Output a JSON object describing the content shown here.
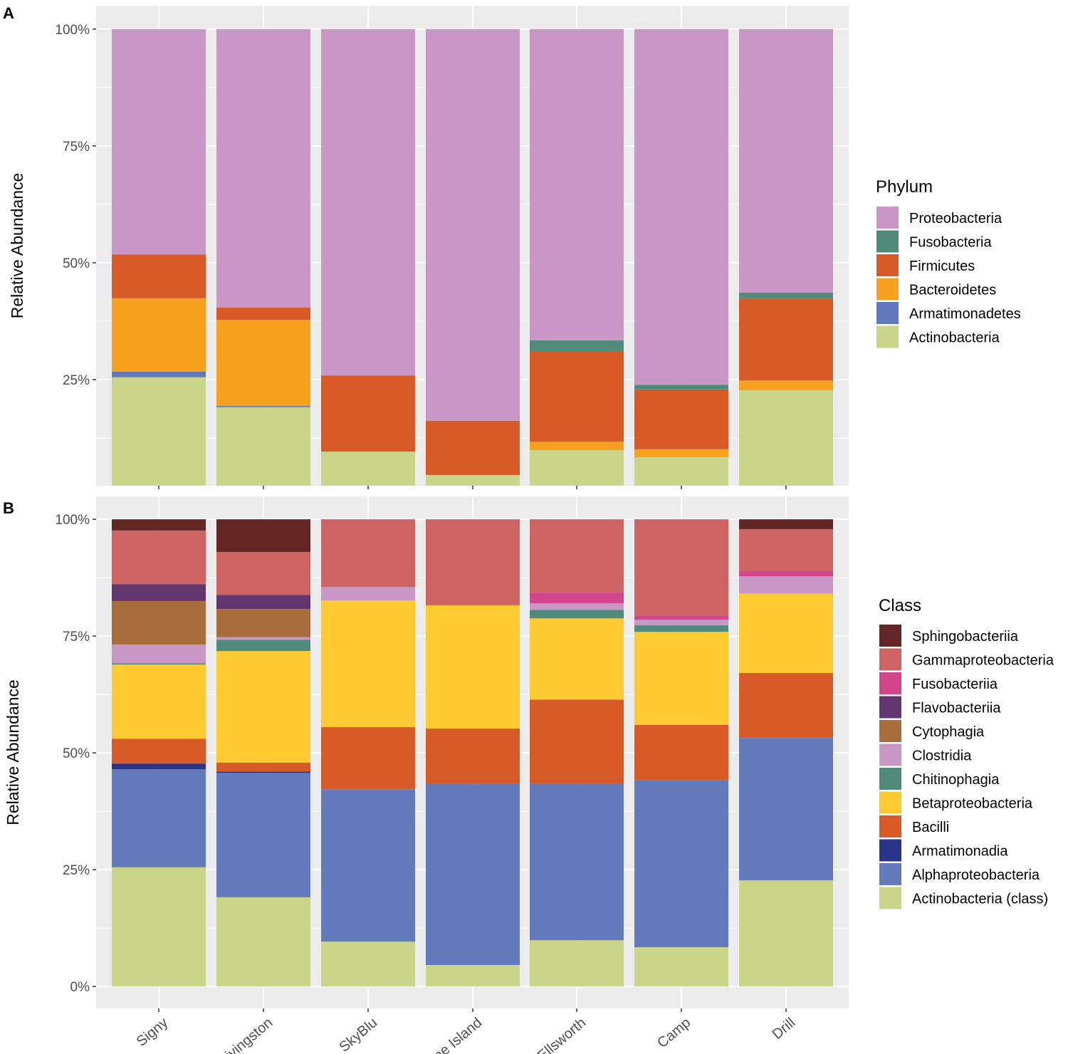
{
  "chart_data": [
    {
      "type": "bar",
      "stacked": true,
      "panel_label": "A",
      "ylabel": "Relative Abundance",
      "ylim": [
        2.3,
        105
      ],
      "yticks": [
        {
          "v": 25,
          "label": "25%"
        },
        {
          "v": 50,
          "label": "50%"
        },
        {
          "v": 75,
          "label": "75%"
        },
        {
          "v": 100,
          "label": "100%"
        }
      ],
      "categories": [
        "Signy",
        "Livingston",
        "SkyBlu",
        "Pine Island",
        "Ellsworth",
        "Camp",
        "Drill"
      ],
      "legend_title": "Phylum",
      "legend_position": "right",
      "series": [
        {
          "name": "Actinobacteria",
          "color": "#CBD589",
          "values": [
            25.5,
            19.1,
            9.6,
            4.6,
            9.9,
            8.4,
            22.7
          ]
        },
        {
          "name": "Armatimonadetes",
          "color": "#6079BC",
          "values": [
            1.2,
            0.3,
            0,
            0,
            0,
            0,
            0
          ]
        },
        {
          "name": "Bacteroidetes",
          "color": "#F8A11E",
          "values": [
            15.7,
            18.4,
            0,
            0,
            1.8,
            1.7,
            2.1
          ]
        },
        {
          "name": "Firmicutes",
          "color": "#D85A27",
          "values": [
            9.4,
            2.6,
            16.3,
            11.6,
            19.4,
            12.8,
            17.6
          ]
        },
        {
          "name": "Fusobacteria",
          "color": "#4F8A7B",
          "values": [
            0,
            0,
            0,
            0,
            2.3,
            1.0,
            1.2
          ]
        },
        {
          "name": "Proteobacteria",
          "color": "#C997C6",
          "values": [
            48.2,
            59.6,
            74.1,
            83.8,
            66.6,
            76.1,
            56.4
          ]
        }
      ]
    },
    {
      "type": "bar",
      "stacked": true,
      "panel_label": "B",
      "ylabel": "Relative Abundance",
      "ylim": [
        -4.7,
        104.9
      ],
      "yticks": [
        {
          "v": 0,
          "label": "0%"
        },
        {
          "v": 25,
          "label": "25%"
        },
        {
          "v": 50,
          "label": "50%"
        },
        {
          "v": 75,
          "label": "75%"
        },
        {
          "v": 100,
          "label": "100%"
        }
      ],
      "categories": [
        "Signy",
        "Livingston",
        "SkyBlu",
        "Pine Island",
        "Ellsworth",
        "Camp",
        "Drill"
      ],
      "legend_title": "Class",
      "legend_position": "right",
      "series": [
        {
          "name": "Actinobacteria (class)",
          "color": "#CBD589",
          "values": [
            25.5,
            19.1,
            9.6,
            4.6,
            9.9,
            8.4,
            22.7
          ]
        },
        {
          "name": "Alphaproteobacteria",
          "color": "#637BBD",
          "values": [
            21.0,
            26.6,
            32.6,
            38.8,
            33.5,
            35.7,
            30.5
          ]
        },
        {
          "name": "Armatimonadia",
          "color": "#2B3489",
          "values": [
            1.2,
            0.3,
            0,
            0,
            0,
            0,
            0
          ]
        },
        {
          "name": "Bacilli",
          "color": "#D85A27",
          "values": [
            5.3,
            1.9,
            13.3,
            11.8,
            18.0,
            11.9,
            13.9
          ]
        },
        {
          "name": "Betaproteobacteria",
          "color": "#FECA32",
          "values": [
            15.9,
            23.9,
            27.1,
            26.4,
            17.4,
            19.9,
            17.0
          ]
        },
        {
          "name": "Chitinophagia",
          "color": "#4F8A7B",
          "values": [
            0.3,
            2.4,
            0,
            0,
            1.8,
            1.4,
            0
          ]
        },
        {
          "name": "Clostridia",
          "color": "#C997C6",
          "values": [
            4.0,
            0.6,
            2.9,
            0,
            1.4,
            1.2,
            3.7
          ]
        },
        {
          "name": "Cytophagia",
          "color": "#A96D3B",
          "values": [
            9.3,
            6.0,
            0,
            0,
            0,
            0,
            0
          ]
        },
        {
          "name": "Flavobacteriia",
          "color": "#633570",
          "values": [
            3.6,
            3.0,
            0,
            0,
            0,
            0,
            0
          ]
        },
        {
          "name": "Fusobacteriia",
          "color": "#D1468A",
          "values": [
            0,
            0,
            0,
            0,
            2.3,
            0.9,
            1.2
          ]
        },
        {
          "name": "Gammaproteobacteria",
          "color": "#CD6463",
          "values": [
            11.5,
            9.2,
            14.5,
            18.4,
            15.7,
            20.6,
            8.9
          ]
        },
        {
          "name": "Sphingobacteriia",
          "color": "#632624",
          "values": [
            2.4,
            7.0,
            0,
            0,
            0,
            0,
            2.1
          ]
        }
      ]
    }
  ]
}
